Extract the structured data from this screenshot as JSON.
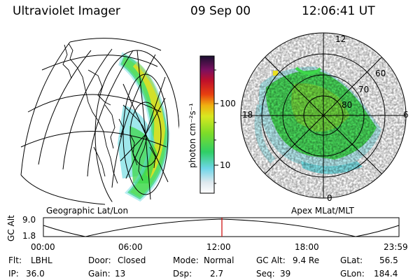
{
  "header": {
    "title": "Ultraviolet Imager",
    "date": "09 Sep 00",
    "time": "12:06:41 UT"
  },
  "colorbar": {
    "unit_label": "photon cm⁻²s⁻¹",
    "ticks": [
      "100",
      "10"
    ]
  },
  "panels": {
    "left_label": "Geographic Lat/Lon",
    "right_label": "Apex MLat/MLT"
  },
  "polar": {
    "mlt_labels": [
      "12",
      "18",
      "6",
      "0"
    ],
    "lat_labels": [
      "60",
      "70",
      "80"
    ]
  },
  "timeline": {
    "ylabel": "GC Alt",
    "yticks": [
      "9.0",
      "1.8"
    ],
    "xticks": [
      "00:00",
      "06:00",
      "12:00",
      "18:00",
      "23:59"
    ],
    "marker_time": "12:06"
  },
  "info": {
    "flt_label": "Flt:",
    "flt_value": "LBHL",
    "ip_label": "IP:",
    "ip_value": "36.0",
    "door_label": "Door:",
    "door_value": "Closed",
    "gain_label": "Gain:",
    "gain_value": "13",
    "mode_label": "Mode:",
    "mode_value": "Normal",
    "dsp_label": "Dsp:",
    "dsp_value": "2.7",
    "gcalt_label": "GC Alt:",
    "gcalt_value": "9.4 Re",
    "seq_label": "Seq:",
    "seq_value": "39",
    "glat_label": "GLat:",
    "glat_value": "56.5",
    "glon_label": "GLon:",
    "glon_value": "184.4"
  },
  "colors": {
    "aurora_main": "#3dd84a",
    "aurora_cyan": "#5fd8e0",
    "aurora_yellow": "#e8e020",
    "marker": "#cc0000"
  }
}
